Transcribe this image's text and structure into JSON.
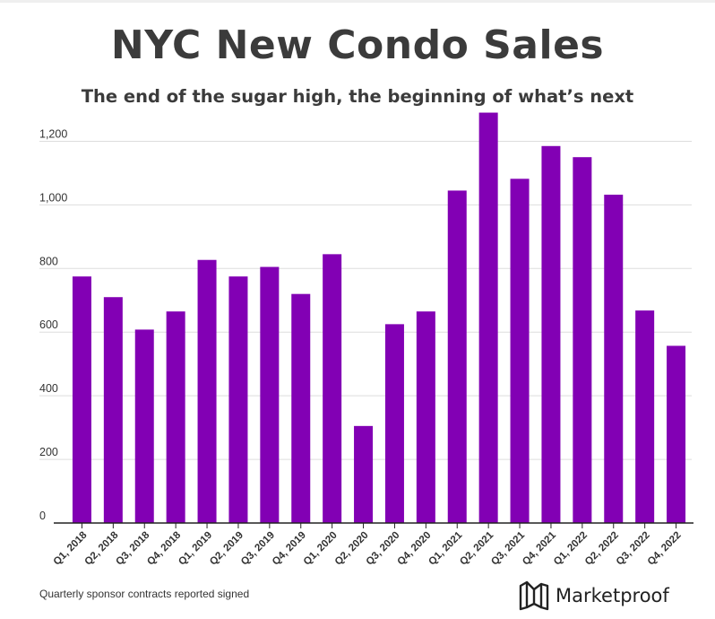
{
  "header": {
    "title": "NYC New Condo Sales",
    "subtitle": "The end of the sugar high, the beginning of what’s next"
  },
  "footer": {
    "caption": "Quarterly sponsor contracts reported signed",
    "brand": "Marketproof"
  },
  "colors": {
    "bar": "#8200b4",
    "grid": "#dddddd",
    "axis": "#222222",
    "text": "#3b3b3b"
  },
  "chart_data": {
    "type": "bar",
    "categories": [
      "Q1, 2018",
      "Q2, 2018",
      "Q3, 2018",
      "Q4, 2018",
      "Q1, 2019",
      "Q2, 2019",
      "Q3, 2019",
      "Q4, 2019",
      "Q1, 2020",
      "Q2, 2020",
      "Q3, 2020",
      "Q4, 2020",
      "Q1, 2021",
      "Q2, 2021",
      "Q3, 2021",
      "Q4, 2021",
      "Q1, 2022",
      "Q2, 2022",
      "Q3, 2022",
      "Q4, 2022"
    ],
    "values": [
      775,
      710,
      608,
      665,
      827,
      775,
      805,
      720,
      845,
      305,
      625,
      665,
      1045,
      1290,
      1082,
      1185,
      1150,
      1032,
      668,
      557
    ],
    "yticks": [
      0,
      200,
      400,
      600,
      800,
      1000,
      1200
    ],
    "ytick_labels": [
      "0",
      "200",
      "400",
      "600",
      "800",
      "1,000",
      "1,200"
    ],
    "ylim": [
      0,
      1300
    ],
    "grid": true,
    "xlabel": "",
    "ylabel": ""
  }
}
